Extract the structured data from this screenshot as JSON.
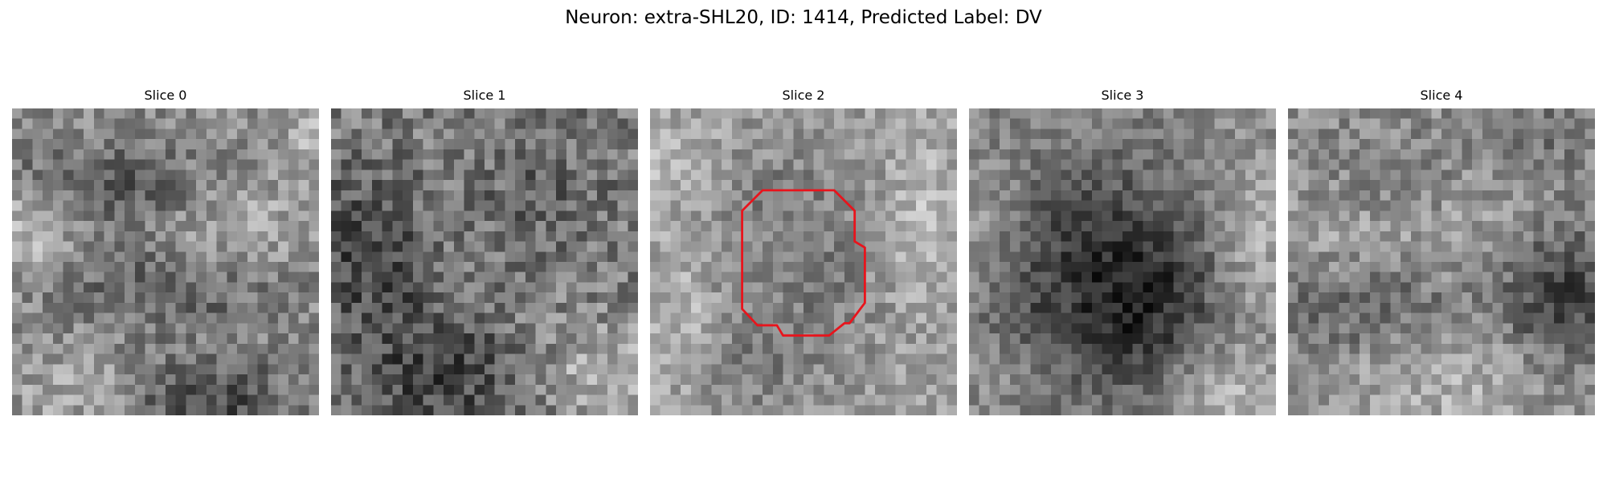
{
  "figure": {
    "title": "Neuron: extra-SHL20, ID: 1414, Predicted Label: DV"
  },
  "colormap": "gray",
  "outline_color": "#e8141c",
  "panels": [
    {
      "title": "Slice 0",
      "has_outline": false
    },
    {
      "title": "Slice 1",
      "has_outline": false
    },
    {
      "title": "Slice 2",
      "has_outline": true
    },
    {
      "title": "Slice 3",
      "has_outline": false
    },
    {
      "title": "Slice 4",
      "has_outline": false
    }
  ]
}
